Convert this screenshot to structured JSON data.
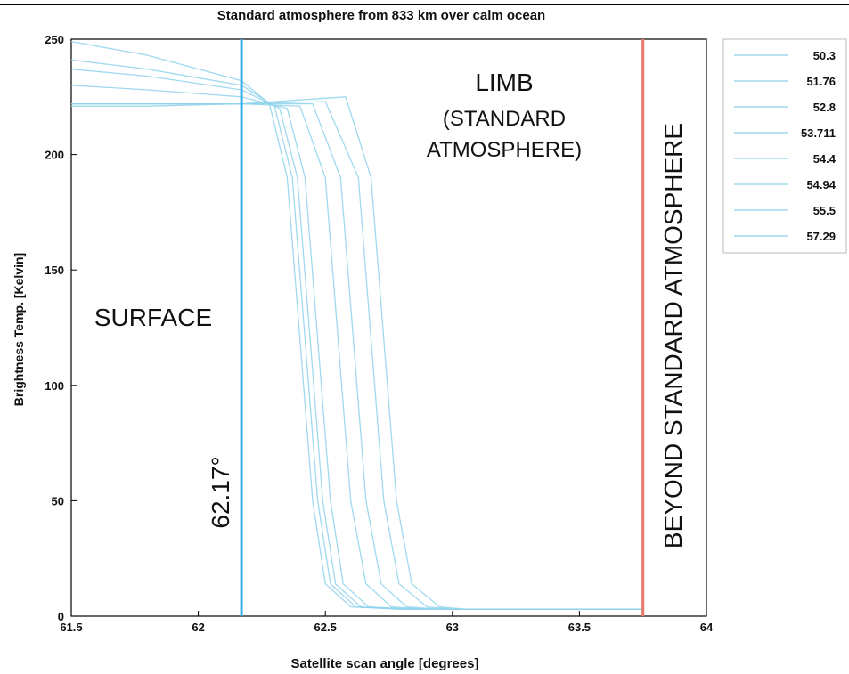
{
  "chart_data": {
    "type": "line",
    "title": "Standard atmosphere from 833 km over calm ocean",
    "xlabel": "Satellite scan angle [degrees]",
    "ylabel": "Brightness Temp. [Kelvin]",
    "xlim": [
      61.5,
      64
    ],
    "ylim": [
      0,
      250
    ],
    "x_ticks": [
      "61.5",
      "62",
      "62.5",
      "63",
      "63.5",
      "64"
    ],
    "y_ticks": [
      "0",
      "50",
      "100",
      "150",
      "200",
      "250"
    ],
    "grid": false,
    "legend_position": "right outside",
    "colors": {
      "series": "#8fd2ec",
      "surface_line": "#3aaee8",
      "beyond_line": "#e8786a",
      "frame": "#000000"
    },
    "vlines": [
      {
        "x": 62.17,
        "label": "62.17°",
        "color": "#3aaee8"
      },
      {
        "x": 63.75,
        "label": "",
        "color": "#e8786a"
      }
    ],
    "annotations": {
      "surface": "SURFACE",
      "limb_line1": "LIMB",
      "limb_line2": "(STANDARD",
      "limb_line3": "ATMOSPHERE)",
      "beyond": "BEYOND STANDARD ATMOSPHERE",
      "angle": "62.17°"
    },
    "series": [
      {
        "name": "50.3",
        "x": [
          61.5,
          61.8,
          62.17,
          62.28,
          62.35,
          62.4,
          62.45,
          62.5,
          62.6,
          62.8,
          63.75
        ],
        "y": [
          249,
          243,
          232,
          222,
          190,
          120,
          50,
          14,
          4,
          3,
          3
        ]
      },
      {
        "name": "51.76",
        "x": [
          61.5,
          61.8,
          62.17,
          62.3,
          62.37,
          62.42,
          62.47,
          62.52,
          62.62,
          62.8,
          63.75
        ],
        "y": [
          241,
          237,
          230,
          221,
          190,
          120,
          50,
          14,
          4,
          3,
          3
        ]
      },
      {
        "name": "52.8",
        "x": [
          61.5,
          61.8,
          62.17,
          62.32,
          62.39,
          62.44,
          62.49,
          62.54,
          62.64,
          62.8,
          63.75
        ],
        "y": [
          237,
          234,
          228,
          220,
          190,
          120,
          50,
          14,
          4,
          3,
          3
        ]
      },
      {
        "name": "53.711",
        "x": [
          61.5,
          61.8,
          62.17,
          62.35,
          62.42,
          62.47,
          62.52,
          62.57,
          62.67,
          62.85,
          63.75
        ],
        "y": [
          230,
          228,
          225,
          220,
          190,
          120,
          50,
          14,
          4,
          3,
          3
        ]
      },
      {
        "name": "54.4",
        "x": [
          61.5,
          61.8,
          62.17,
          62.4,
          62.5,
          62.55,
          62.6,
          62.66,
          62.76,
          62.9,
          63.75
        ],
        "y": [
          221,
          221,
          222,
          221,
          190,
          120,
          50,
          14,
          4,
          3,
          3
        ]
      },
      {
        "name": "54.94",
        "x": [
          61.5,
          61.8,
          62.17,
          62.45,
          62.56,
          62.61,
          62.66,
          62.72,
          62.82,
          62.95,
          63.75
        ],
        "y": [
          222,
          222,
          222,
          222,
          190,
          120,
          50,
          14,
          4,
          3,
          3
        ]
      },
      {
        "name": "55.5",
        "x": [
          61.5,
          61.8,
          62.17,
          62.5,
          62.63,
          62.68,
          62.73,
          62.79,
          62.9,
          63.0,
          63.75
        ],
        "y": [
          222,
          222,
          222,
          223,
          190,
          120,
          50,
          14,
          4,
          3,
          3
        ]
      },
      {
        "name": "57.29",
        "x": [
          61.5,
          61.8,
          62.17,
          62.58,
          62.68,
          62.73,
          62.78,
          62.84,
          62.95,
          63.05,
          63.75
        ],
        "y": [
          222,
          222,
          222,
          225,
          190,
          120,
          50,
          14,
          4,
          3,
          3
        ]
      }
    ]
  }
}
